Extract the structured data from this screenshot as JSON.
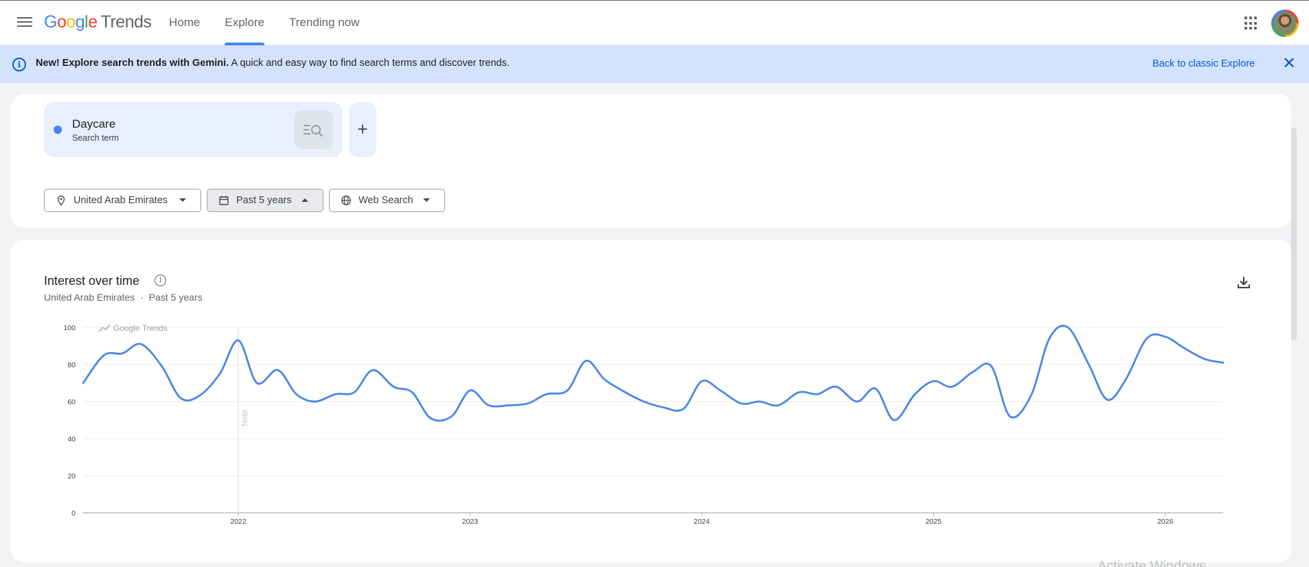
{
  "header": {
    "logo_google": "Google",
    "logo_trends": "Trends",
    "nav": [
      {
        "label": "Home",
        "active": false
      },
      {
        "label": "Explore",
        "active": true
      },
      {
        "label": "Trending now",
        "active": false
      }
    ]
  },
  "banner": {
    "bold_text": "New! Explore search trends with Gemini.",
    "text": "A quick and easy way to find search terms and discover trends.",
    "link": "Back to classic Explore"
  },
  "search": {
    "term": "Daycare",
    "term_type": "Search term",
    "term_color": "#4285f4"
  },
  "filters": {
    "region": "United Arab Emirates",
    "period": "Past 5 years",
    "property": "Web Search"
  },
  "chart_card": {
    "title": "Interest over time",
    "subtitle_region": "United Arab Emirates",
    "subtitle_sep": "·",
    "subtitle_period": "Past 5 years",
    "watermark": "Google Trends",
    "note_label": "Note"
  },
  "chart_data": {
    "type": "line",
    "series": [
      {
        "name": "Daycare",
        "color": "#4a86e8",
        "values": [
          [
            2021.33,
            70
          ],
          [
            2021.42,
            85
          ],
          [
            2021.5,
            86
          ],
          [
            2021.58,
            91
          ],
          [
            2021.67,
            79
          ],
          [
            2021.75,
            62
          ],
          [
            2021.83,
            63
          ],
          [
            2021.92,
            75
          ],
          [
            2022.0,
            93
          ],
          [
            2022.08,
            70
          ],
          [
            2022.17,
            77
          ],
          [
            2022.25,
            64
          ],
          [
            2022.33,
            60
          ],
          [
            2022.42,
            64
          ],
          [
            2022.5,
            65
          ],
          [
            2022.58,
            77
          ],
          [
            2022.67,
            68
          ],
          [
            2022.75,
            65
          ],
          [
            2022.83,
            51
          ],
          [
            2022.92,
            52
          ],
          [
            2023.0,
            66
          ],
          [
            2023.08,
            58
          ],
          [
            2023.17,
            58
          ],
          [
            2023.25,
            59
          ],
          [
            2023.33,
            64
          ],
          [
            2023.42,
            66
          ],
          [
            2023.5,
            82
          ],
          [
            2023.58,
            72
          ],
          [
            2023.67,
            65
          ],
          [
            2023.75,
            60
          ],
          [
            2023.83,
            57
          ],
          [
            2023.92,
            56
          ],
          [
            2024.0,
            71
          ],
          [
            2024.08,
            66
          ],
          [
            2024.17,
            59
          ],
          [
            2024.25,
            60
          ],
          [
            2024.33,
            58
          ],
          [
            2024.42,
            65
          ],
          [
            2024.5,
            64
          ],
          [
            2024.58,
            68
          ],
          [
            2024.67,
            60
          ],
          [
            2024.75,
            67
          ],
          [
            2024.83,
            50
          ],
          [
            2024.92,
            64
          ],
          [
            2025.0,
            71
          ],
          [
            2025.08,
            68
          ],
          [
            2025.17,
            76
          ],
          [
            2025.25,
            79
          ],
          [
            2025.33,
            52
          ],
          [
            2025.42,
            63
          ],
          [
            2025.5,
            94
          ],
          [
            2025.58,
            100
          ],
          [
            2025.67,
            80
          ],
          [
            2025.75,
            61
          ],
          [
            2025.83,
            72
          ],
          [
            2025.92,
            94
          ],
          [
            2026.0,
            95
          ],
          [
            2026.08,
            89
          ],
          [
            2026.17,
            83
          ],
          [
            2026.25,
            81
          ]
        ]
      }
    ],
    "x_ticks": [
      "2022",
      "2023",
      "2024",
      "2025",
      "2026"
    ],
    "y_ticks": [
      0,
      20,
      40,
      60,
      80,
      100
    ],
    "ylim": [
      0,
      100
    ],
    "xlim": [
      2021.33,
      2026.25
    ],
    "grid": true,
    "legend": "none"
  },
  "overlay": {
    "activate_text": "Activate Windows"
  }
}
